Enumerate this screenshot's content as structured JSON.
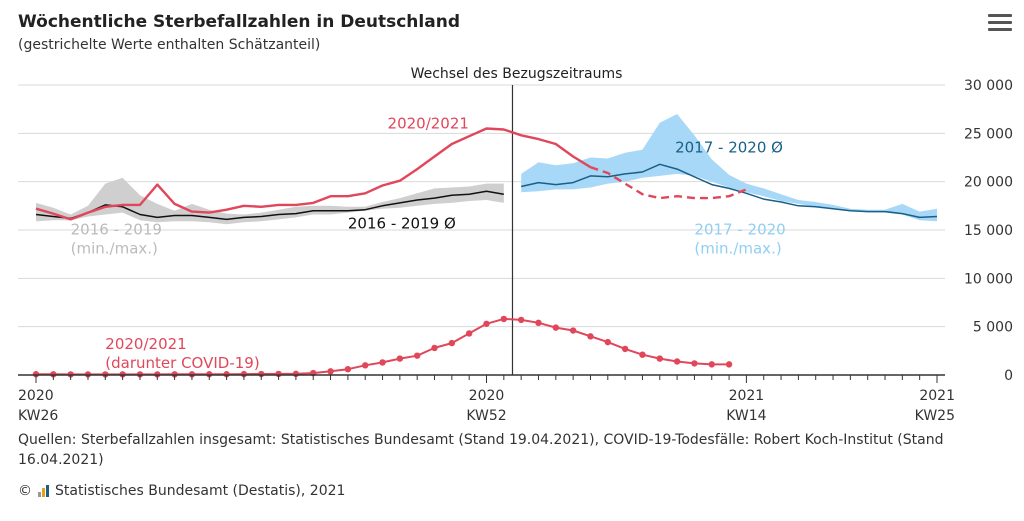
{
  "header": {
    "title": "Wöchentliche Sterbefallzahlen in Deutschland",
    "subtitle": "(gestrichelte Werte enthalten Schätzanteil)",
    "menu_icon": "hamburger-menu-icon"
  },
  "footer": {
    "sources": "Quellen: Sterbefallzahlen insgesamt: Statistisches Bundesamt (Stand 19.04.2021), COVID-19-Todesfälle: Robert Koch-Institut (Stand 16.04.2021)",
    "copyright_symbol": "©",
    "copyright": "Statistisches Bundesamt (Destatis), 2021"
  },
  "colors": {
    "red": "#e0475a",
    "black": "#111111",
    "gray_band": "#cfcfcf",
    "blue_line": "#1a5f86",
    "blue_band": "#a7d8f7",
    "grid": "#d9d9d9",
    "axis": "#333333"
  },
  "chart_data": {
    "type": "line",
    "title": "Wöchentliche Sterbefallzahlen in Deutschland",
    "subtitle": "(gestrichelte Werte enthalten Schätzanteil)",
    "y_axis": {
      "ylim": [
        0,
        30000
      ],
      "ticks": [
        0,
        5000,
        10000,
        15000,
        20000,
        25000,
        30000
      ],
      "tick_labels": [
        "0",
        "5 000",
        "10 000",
        "15 000",
        "20 000",
        "25 000",
        "30 000"
      ],
      "position": "right"
    },
    "x_axis": {
      "week_index_range": [
        0,
        52
      ],
      "ticks": [
        {
          "week": 0,
          "year": "2020",
          "kw": "KW26",
          "align": "start"
        },
        {
          "week": 26,
          "year": "2020",
          "kw": "KW52",
          "align": "middle"
        },
        {
          "week": 41,
          "year": "2021",
          "kw": "KW14",
          "align": "middle"
        },
        {
          "week": 52,
          "year": "2021",
          "kw": "KW25",
          "align": "end"
        }
      ]
    },
    "reference_line": {
      "week": 27.5,
      "label": "Wechsel des Bezugszeitraums"
    },
    "series": [
      {
        "name": "2016 - 2019 (min./max.)",
        "kind": "band",
        "color": "#cfcfcf",
        "x": [
          0,
          1,
          2,
          3,
          4,
          5,
          6,
          7,
          8,
          9,
          10,
          11,
          12,
          13,
          14,
          15,
          16,
          17,
          18,
          19,
          20,
          21,
          22,
          23,
          24,
          25,
          26,
          27
        ],
        "low": [
          15900,
          16000,
          16000,
          16400,
          16600,
          16800,
          16000,
          15800,
          15900,
          15900,
          15800,
          15600,
          15800,
          15900,
          16100,
          16300,
          16600,
          16600,
          16800,
          17000,
          17200,
          17300,
          17500,
          17700,
          17800,
          18000,
          18100,
          17800
        ],
        "high": [
          17800,
          17300,
          16600,
          17500,
          19800,
          20400,
          18600,
          17700,
          17000,
          17700,
          17100,
          16700,
          16600,
          16800,
          17100,
          17400,
          17500,
          17500,
          17400,
          17400,
          17900,
          18300,
          18800,
          19300,
          19400,
          19500,
          19800,
          19800
        ]
      },
      {
        "name": "2016 - 2019 Ø",
        "kind": "line",
        "color": "#111111",
        "x": [
          0,
          1,
          2,
          3,
          4,
          5,
          6,
          7,
          8,
          9,
          10,
          11,
          12,
          13,
          14,
          15,
          16,
          17,
          18,
          19,
          20,
          21,
          22,
          23,
          24,
          25,
          26,
          27
        ],
        "values": [
          16600,
          16400,
          16200,
          16800,
          17600,
          17400,
          16600,
          16300,
          16500,
          16500,
          16300,
          16100,
          16300,
          16400,
          16600,
          16700,
          17000,
          17000,
          17000,
          17100,
          17500,
          17800,
          18100,
          18300,
          18600,
          18700,
          19000,
          18700
        ]
      },
      {
        "name": "2017 - 2020 (min./max.)",
        "kind": "band",
        "color": "#a7d8f7",
        "x": [
          28,
          29,
          30,
          31,
          32,
          33,
          34,
          35,
          36,
          37,
          38,
          39,
          40,
          41,
          42,
          43,
          44,
          45,
          46,
          47,
          48,
          49,
          50,
          51,
          52
        ],
        "low": [
          18900,
          19000,
          19200,
          19200,
          19400,
          19800,
          20000,
          20400,
          20600,
          20800,
          20600,
          20000,
          19400,
          18900,
          18500,
          18000,
          17700,
          17400,
          17200,
          17000,
          16900,
          16800,
          16600,
          16000,
          15900
        ],
        "high": [
          20800,
          22000,
          21700,
          21900,
          22500,
          22400,
          23000,
          23300,
          26100,
          27000,
          24800,
          22300,
          20700,
          19800,
          19300,
          18700,
          18100,
          17900,
          17600,
          17200,
          17100,
          17100,
          17700,
          16900,
          17200
        ]
      },
      {
        "name": "2017 - 2020 Ø",
        "kind": "line",
        "color": "#1a5f86",
        "x": [
          28,
          29,
          30,
          31,
          32,
          33,
          34,
          35,
          36,
          37,
          38,
          39,
          40,
          41,
          42,
          43,
          44,
          45,
          46,
          47,
          48,
          49,
          50,
          51,
          52
        ],
        "values": [
          19500,
          19900,
          19700,
          19900,
          20600,
          20500,
          20800,
          21000,
          21800,
          21300,
          20500,
          19700,
          19300,
          18800,
          18200,
          17900,
          17500,
          17400,
          17200,
          17000,
          16900,
          16900,
          16700,
          16300,
          16400
        ]
      },
      {
        "name": "2020/2021",
        "kind": "line",
        "color": "#e0475a",
        "x": [
          0,
          1,
          2,
          3,
          4,
          5,
          6,
          7,
          8,
          9,
          10,
          11,
          12,
          13,
          14,
          15,
          16,
          17,
          18,
          19,
          20,
          21,
          22,
          23,
          24,
          25,
          26,
          27,
          28,
          29,
          30,
          31,
          32
        ],
        "values": [
          17200,
          16700,
          16100,
          16800,
          17400,
          17600,
          17600,
          19700,
          17700,
          16900,
          16800,
          17100,
          17500,
          17400,
          17600,
          17600,
          17800,
          18500,
          18500,
          18800,
          19600,
          20100,
          21300,
          22600,
          23900,
          24700,
          25500,
          25400,
          24800,
          24400,
          23900,
          22600,
          21500
        ]
      },
      {
        "name": "2020/2021 (geschätzt)",
        "kind": "line",
        "dashed": true,
        "color": "#e0475a",
        "x": [
          32,
          33,
          34,
          35,
          36,
          37,
          38,
          39,
          40,
          41
        ],
        "values": [
          21500,
          20900,
          19800,
          18700,
          18300,
          18500,
          18300,
          18300,
          18500,
          19200
        ]
      },
      {
        "name": "2020/2021 (darunter COVID-19)",
        "kind": "line",
        "markers": true,
        "color": "#e0475a",
        "x": [
          0,
          1,
          2,
          3,
          4,
          5,
          6,
          7,
          8,
          9,
          10,
          11,
          12,
          13,
          14,
          15,
          16,
          17,
          18,
          19,
          20,
          21,
          22,
          23,
          24,
          25,
          26,
          27,
          28,
          29,
          30,
          31,
          32,
          33,
          34,
          35,
          36,
          37,
          38,
          39,
          40
        ],
        "values": [
          80,
          70,
          60,
          60,
          60,
          60,
          60,
          60,
          70,
          70,
          80,
          80,
          90,
          100,
          110,
          120,
          200,
          380,
          600,
          1000,
          1300,
          1700,
          2000,
          2800,
          3300,
          4300,
          5300,
          5800,
          5700,
          5400,
          4900,
          4600,
          4000,
          3400,
          2700,
          2100,
          1700,
          1400,
          1200,
          1100,
          1100
        ]
      }
    ],
    "labels": [
      {
        "text": "2020/2021",
        "series": "2020/2021",
        "color": "#e0475a"
      },
      {
        "text": "2016 - 2019 Ø",
        "series": "2016 - 2019 Ø",
        "color": "#111111"
      },
      {
        "text": "2016 - 2019",
        "series": "2016 - 2019 (min./max.)",
        "color": "#bbbbbb"
      },
      {
        "text": "(min./max.)",
        "series": "2016 - 2019 (min./max.)",
        "color": "#bbbbbb"
      },
      {
        "text": "2017 - 2020 Ø",
        "series": "2017 - 2020 Ø",
        "color": "#1a5f86"
      },
      {
        "text": "2017 - 2020",
        "series": "2017 - 2020 (min./max.)",
        "color": "#8fcff5"
      },
      {
        "text": "(min./max.)",
        "series": "2017 - 2020 (min./max.)",
        "color": "#8fcff5"
      },
      {
        "text": "2020/2021",
        "series": "2020/2021 (darunter COVID-19)",
        "color": "#e0475a"
      },
      {
        "text": "(darunter COVID-19)",
        "series": "2020/2021 (darunter COVID-19)",
        "color": "#e0475a"
      }
    ]
  }
}
